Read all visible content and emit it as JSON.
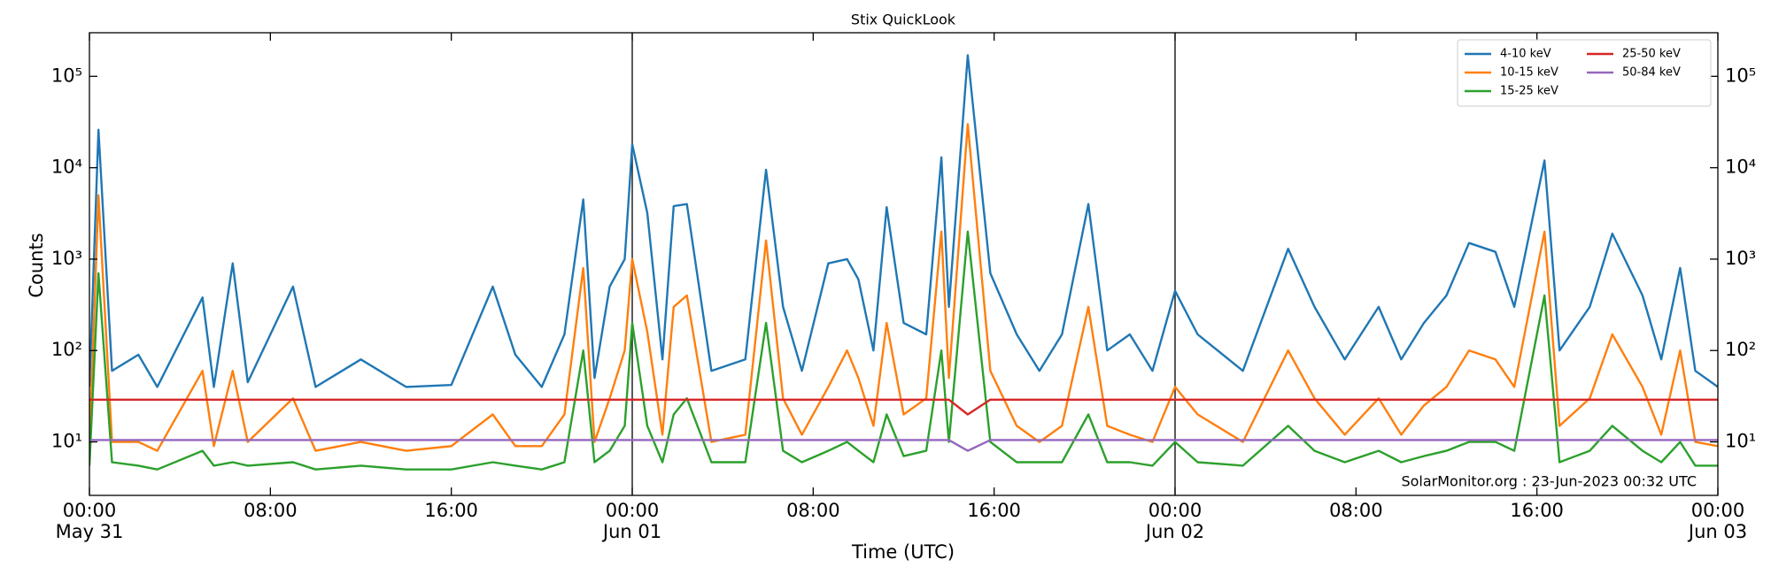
{
  "chart_data": {
    "type": "line",
    "title": "Stix QuickLook",
    "xlabel": "Time (UTC)",
    "ylabel": "Counts",
    "annotation": "SolarMonitor.org : 23-Jun-2023 00:32 UTC",
    "log_y": true,
    "legend": "upper right",
    "legend_columns": 2,
    "x": [
      "May 31 00:00",
      "May 31 00:24",
      "May 31 01:00",
      "May 31 02:10",
      "May 31 03:00",
      "May 31 05:00",
      "May 31 05:30",
      "May 31 06:20",
      "May 31 07:00",
      "May 31 09:00",
      "May 31 10:00",
      "May 31 12:00",
      "May 31 14:00",
      "May 31 16:00",
      "May 31 17:50",
      "May 31 18:50",
      "May 31 20:00",
      "May 31 21:00",
      "May 31 21:50",
      "May 31 22:20",
      "May 31 23:00",
      "May 31 23:40",
      "Jun 01 00:00",
      "Jun 01 00:40",
      "Jun 01 01:20",
      "Jun 01 01:50",
      "Jun 01 02:25",
      "Jun 01 03:30",
      "Jun 01 05:00",
      "Jun 01 05:55",
      "Jun 01 06:40",
      "Jun 01 07:30",
      "Jun 01 08:40",
      "Jun 01 09:30",
      "Jun 01 10:00",
      "Jun 01 10:40",
      "Jun 01 11:15",
      "Jun 01 12:00",
      "Jun 01 13:00",
      "Jun 01 13:40",
      "Jun 01 14:00",
      "Jun 01 14:50",
      "Jun 01 15:50",
      "Jun 01 17:00",
      "Jun 01 18:00",
      "Jun 01 19:00",
      "Jun 01 20:10",
      "Jun 01 21:00",
      "Jun 01 22:00",
      "Jun 01 23:00",
      "Jun 02 00:00",
      "Jun 02 01:00",
      "Jun 02 03:00",
      "Jun 02 05:00",
      "Jun 02 06:10",
      "Jun 02 07:30",
      "Jun 02 09:00",
      "Jun 02 10:00",
      "Jun 02 11:00",
      "Jun 02 12:00",
      "Jun 02 13:00",
      "Jun 02 14:10",
      "Jun 02 15:00",
      "Jun 02 16:20",
      "Jun 02 17:00",
      "Jun 02 18:20",
      "Jun 02 19:20",
      "Jun 02 20:40",
      "Jun 02 21:30",
      "Jun 02 22:20",
      "Jun 02 23:00",
      "Jun 03 00:00"
    ],
    "series": [
      {
        "name": "4-10 keV",
        "color": "#1f77b4",
        "values": [
          40,
          26000,
          60,
          90,
          40,
          380,
          40,
          900,
          45,
          500,
          40,
          80,
          40,
          42,
          500,
          90,
          40,
          150,
          4500,
          50,
          500,
          1000,
          18000,
          3200,
          80,
          3800,
          4000,
          60,
          80,
          9500,
          300,
          60,
          900,
          1000,
          600,
          100,
          3700,
          200,
          150,
          13000,
          300,
          170000,
          700,
          150,
          60,
          150,
          4000,
          100,
          150,
          60,
          450,
          150,
          60,
          1300,
          300,
          80,
          300,
          80,
          200,
          400,
          1500,
          1200,
          300,
          12000,
          100,
          300,
          1900,
          400,
          80,
          800,
          60,
          40
        ]
      },
      {
        "name": "10-15 keV",
        "color": "#ff7f0e",
        "values": [
          9,
          5000,
          10,
          10,
          8,
          60,
          9,
          60,
          10,
          30,
          8,
          10,
          8,
          9,
          20,
          9,
          9,
          20,
          800,
          10,
          30,
          100,
          1000,
          160,
          12,
          300,
          400,
          10,
          12,
          1600,
          30,
          12,
          40,
          100,
          50,
          15,
          200,
          20,
          30,
          2000,
          50,
          30000,
          60,
          15,
          10,
          15,
          300,
          15,
          12,
          10,
          40,
          20,
          10,
          100,
          30,
          12,
          30,
          12,
          25,
          40,
          100,
          80,
          40,
          2000,
          15,
          30,
          150,
          40,
          12,
          100,
          10,
          9
        ]
      },
      {
        "name": "15-25 keV",
        "color": "#2ca02c",
        "values": [
          5.5,
          700,
          6,
          5.5,
          5,
          8,
          5.5,
          6,
          5.5,
          6,
          5,
          5.5,
          5,
          5,
          6,
          5.5,
          5,
          6,
          100,
          6,
          8,
          15,
          200,
          15,
          6,
          20,
          30,
          6,
          6,
          200,
          8,
          6,
          8,
          10,
          8,
          6,
          20,
          7,
          8,
          100,
          10,
          2000,
          10,
          6,
          6,
          6,
          20,
          6,
          6,
          5.5,
          10,
          6,
          5.5,
          15,
          8,
          6,
          8,
          6,
          7,
          8,
          10,
          10,
          8,
          400,
          6,
          8,
          15,
          8,
          6,
          10,
          5.5,
          5.5
        ]
      },
      {
        "name": "25-50 keV",
        "color": "#d62728",
        "values": [
          29,
          29,
          29,
          29,
          29,
          29,
          29,
          29,
          29,
          29,
          29,
          29,
          29,
          29,
          29,
          29,
          29,
          29,
          29,
          29,
          29,
          29,
          29,
          29,
          29,
          29,
          29,
          29,
          29,
          29,
          29,
          29,
          29,
          29,
          29,
          29,
          29,
          29,
          29,
          29,
          29,
          20,
          29,
          29,
          29,
          29,
          29,
          29,
          29,
          29,
          29,
          29,
          29,
          29,
          29,
          29,
          29,
          29,
          29,
          29,
          29,
          29,
          29,
          29,
          29,
          29,
          29,
          29,
          29,
          29,
          29,
          29
        ]
      },
      {
        "name": "50-84 keV",
        "color": "#9467bd",
        "values": [
          10.5,
          10.5,
          10.5,
          10.5,
          10.5,
          10.5,
          10.5,
          10.5,
          10.5,
          10.5,
          10.5,
          10.5,
          10.5,
          10.5,
          10.5,
          10.5,
          10.5,
          10.5,
          10.5,
          10.5,
          10.5,
          10.5,
          10.5,
          10.5,
          10.5,
          10.5,
          10.5,
          10.5,
          10.5,
          10.5,
          10.5,
          10.5,
          10.5,
          10.5,
          10.5,
          10.5,
          10.5,
          10.5,
          10.5,
          10.5,
          10.5,
          8,
          10.5,
          10.5,
          10.5,
          10.5,
          10.5,
          10.5,
          10.5,
          10.5,
          10.5,
          10.5,
          10.5,
          10.5,
          10.5,
          10.5,
          10.5,
          10.5,
          10.5,
          10.5,
          10.5,
          10.5,
          10.5,
          10.5,
          10.5,
          10.5,
          10.5,
          10.5,
          10.5,
          10.5,
          10.5,
          10.5
        ]
      }
    ],
    "xlim": [
      "May 31 00:00",
      "Jun 03 00:00"
    ],
    "xticks": [
      {
        "value": "May 31 00:00",
        "label": [
          "00:00",
          "May 31"
        ]
      },
      {
        "value": "May 31 08:00",
        "label": [
          "08:00"
        ]
      },
      {
        "value": "May 31 16:00",
        "label": [
          "16:00"
        ]
      },
      {
        "value": "Jun 01 00:00",
        "label": [
          "00:00",
          "Jun 01"
        ]
      },
      {
        "value": "Jun 01 08:00",
        "label": [
          "08:00"
        ]
      },
      {
        "value": "Jun 01 16:00",
        "label": [
          "16:00"
        ]
      },
      {
        "value": "Jun 02 00:00",
        "label": [
          "00:00",
          "Jun 02"
        ]
      },
      {
        "value": "Jun 02 08:00",
        "label": [
          "08:00"
        ]
      },
      {
        "value": "Jun 02 16:00",
        "label": [
          "16:00"
        ]
      },
      {
        "value": "Jun 03 00:00",
        "label": [
          "00:00",
          "Jun 03"
        ]
      }
    ],
    "day_lines": [
      "Jun 01 00:00",
      "Jun 02 00:00"
    ],
    "ylim": [
      2.6,
      300000
    ],
    "yticks": [
      {
        "value": 10,
        "label": "10¹"
      },
      {
        "value": 100,
        "label": "10²"
      },
      {
        "value": 1000,
        "label": "10³"
      },
      {
        "value": 10000,
        "label": "10⁴"
      },
      {
        "value": 100000,
        "label": "10⁵"
      }
    ]
  }
}
